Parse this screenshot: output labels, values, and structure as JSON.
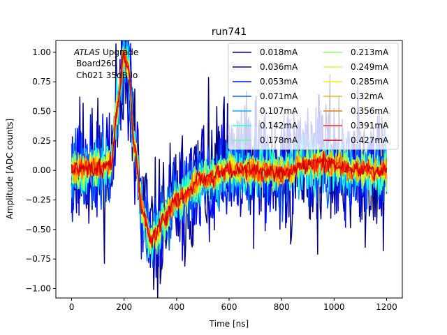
{
  "chart_data": {
    "type": "line",
    "title": "run741",
    "xlabel": "Time [ns]",
    "ylabel": "Amplitude [ADC counts]",
    "xlim": [
      -60,
      1260
    ],
    "ylim": [
      -1.08,
      1.1
    ],
    "xticks": [
      0,
      200,
      400,
      600,
      800,
      1000,
      1200
    ],
    "yticks": [
      -1.0,
      -0.75,
      -0.5,
      -0.25,
      0.0,
      0.25,
      0.5,
      0.75,
      1.0
    ],
    "xtick_labels": [
      "0",
      "200",
      "400",
      "600",
      "800",
      "1000",
      "1200"
    ],
    "ytick_labels": [
      "−1.00",
      "−0.75",
      "−0.50",
      "−0.25",
      "0.00",
      "0.25",
      "0.50",
      "0.75",
      "1.00"
    ],
    "annotation": {
      "line1_italic": "ATLAS",
      "line1_rest": " Upgrade",
      "line2": "Board260",
      "line3": "Ch021 35dB lo"
    },
    "legend_position": "upper right",
    "series": [
      {
        "name": "0.018mA",
        "color": "#00007f",
        "noise": 0.3,
        "seed": 11
      },
      {
        "name": "0.036mA",
        "color": "#0000d0",
        "noise": 0.24,
        "seed": 23
      },
      {
        "name": "0.053mA",
        "color": "#0010ff",
        "noise": 0.2,
        "seed": 37
      },
      {
        "name": "0.071mA",
        "color": "#0060ff",
        "noise": 0.16,
        "seed": 41
      },
      {
        "name": "0.107mA",
        "color": "#00b0ff",
        "noise": 0.12,
        "seed": 53
      },
      {
        "name": "0.142mA",
        "color": "#16ffe1",
        "noise": 0.1,
        "seed": 67
      },
      {
        "name": "0.178mA",
        "color": "#5aff9c",
        "noise": 0.08,
        "seed": 71
      },
      {
        "name": "0.213mA",
        "color": "#8cff6a",
        "noise": 0.07,
        "seed": 83
      },
      {
        "name": "0.249mA",
        "color": "#c1ff36",
        "noise": 0.06,
        "seed": 97
      },
      {
        "name": "0.285mA",
        "color": "#ffea00",
        "noise": 0.055,
        "seed": 101
      },
      {
        "name": "0.32mA",
        "color": "#ffb200",
        "noise": 0.05,
        "seed": 113
      },
      {
        "name": "0.356mA",
        "color": "#ff7300",
        "noise": 0.045,
        "seed": 127
      },
      {
        "name": "0.391mA",
        "color": "#ff2900",
        "noise": 0.04,
        "seed": 131
      },
      {
        "name": "0.427mA",
        "color": "#d40000",
        "noise": 0.035,
        "seed": 149
      }
    ],
    "pulse_shape": {
      "time_ns": [
        0,
        100,
        150,
        175,
        200,
        215,
        240,
        270,
        300,
        320,
        350,
        400,
        500,
        600,
        700,
        800,
        900,
        950,
        1000,
        1100,
        1200
      ],
      "amplitude": [
        0.02,
        0.02,
        0.05,
        0.55,
        0.97,
        0.88,
        0.2,
        -0.35,
        -0.58,
        -0.55,
        -0.42,
        -0.25,
        -0.08,
        0.0,
        0.0,
        -0.02,
        0.05,
        0.07,
        0.05,
        0.0,
        -0.01
      ]
    }
  }
}
